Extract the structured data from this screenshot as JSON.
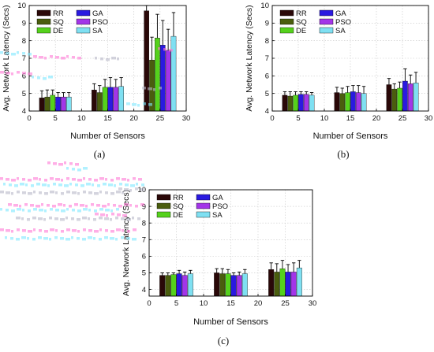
{
  "figure": {
    "panel_labels": [
      "(a)",
      "(b)",
      "(c)"
    ]
  },
  "colors": {
    "RR": "#2a0808",
    "SQ": "#4a5d0e",
    "DE": "#55d11c",
    "GA": "#2a1ae0",
    "PSO": "#a335e8",
    "SA": "#7fe0f2",
    "artifact_pink": "#ff79d6",
    "artifact_cyan": "#7ee9ff",
    "artifact_gray": "#b9b9c9"
  },
  "chart_data": [
    {
      "type": "bar",
      "panel": "(a)",
      "ylabel": "Avg. Network Latency (Secs)",
      "xlabel": "Number of Sensors",
      "xlim": [
        0,
        30
      ],
      "xticks": [
        0,
        5,
        10,
        15,
        20,
        25,
        30
      ],
      "ylim": [
        4,
        10
      ],
      "yticks": [
        4,
        5,
        6,
        7,
        8,
        9,
        10
      ],
      "legend": {
        "placement": "top-left",
        "entries": [
          "RR",
          "GA",
          "SQ",
          "PSO",
          "DE",
          "SA"
        ]
      },
      "grid": true,
      "categories": [
        "5",
        "15",
        "25"
      ],
      "series": [
        {
          "name": "RR",
          "values": [
            4.75,
            5.2,
            9.7
          ],
          "errors": [
            0.4,
            0.35,
            0.3
          ]
        },
        {
          "name": "SQ",
          "values": [
            4.8,
            5.05,
            6.9
          ],
          "errors": [
            0.4,
            0.4,
            1.3
          ]
        },
        {
          "name": "DE",
          "values": [
            4.9,
            5.35,
            8.15
          ],
          "errors": [
            0.3,
            0.45,
            1.35
          ]
        },
        {
          "name": "GA",
          "values": [
            4.8,
            5.35,
            7.75
          ],
          "errors": [
            0.25,
            0.55,
            1.4
          ]
        },
        {
          "name": "PSO",
          "values": [
            4.8,
            5.35,
            7.45
          ],
          "errors": [
            0.25,
            0.45,
            1.2
          ]
        },
        {
          "name": "SA",
          "values": [
            4.8,
            5.4,
            8.25
          ],
          "errors": [
            0.25,
            0.5,
            1.35
          ]
        }
      ]
    },
    {
      "type": "bar",
      "panel": "(b)",
      "ylabel": "Avg. Network Latency (Secs)",
      "xlabel": "Number of Sensors",
      "xlim": [
        0,
        30
      ],
      "xticks": [
        0,
        5,
        10,
        15,
        20,
        25,
        30
      ],
      "ylim": [
        4,
        10
      ],
      "yticks": [
        4,
        5,
        6,
        7,
        8,
        9,
        10
      ],
      "legend": {
        "placement": "top-left",
        "entries": [
          "RR",
          "GA",
          "SQ",
          "PSO",
          "DE",
          "SA"
        ]
      },
      "grid": true,
      "categories": [
        "5",
        "15",
        "25"
      ],
      "series": [
        {
          "name": "RR",
          "values": [
            4.9,
            5.05,
            5.5
          ],
          "errors": [
            0.2,
            0.3,
            0.35
          ]
        },
        {
          "name": "SQ",
          "values": [
            4.85,
            5.0,
            5.25
          ],
          "errors": [
            0.25,
            0.3,
            0.3
          ]
        },
        {
          "name": "DE",
          "values": [
            4.9,
            5.05,
            5.3
          ],
          "errors": [
            0.2,
            0.35,
            0.35
          ]
        },
        {
          "name": "GA",
          "values": [
            4.95,
            5.1,
            5.7
          ],
          "errors": [
            0.15,
            0.35,
            0.7
          ]
        },
        {
          "name": "PSO",
          "values": [
            4.95,
            5.05,
            5.55
          ],
          "errors": [
            0.15,
            0.4,
            0.5
          ]
        },
        {
          "name": "SA",
          "values": [
            4.9,
            5.0,
            5.6
          ],
          "errors": [
            0.15,
            0.4,
            0.6
          ]
        }
      ]
    },
    {
      "type": "bar",
      "panel": "(c)",
      "ylabel": "Avg. Network Latency (Secs)",
      "xlabel": "Number of Sensors",
      "xlim": [
        0,
        30
      ],
      "xticks": [
        0,
        5,
        10,
        15,
        20,
        25,
        30
      ],
      "ylim": [
        3.6,
        10
      ],
      "yticks": [
        4,
        5,
        6,
        7,
        8,
        9,
        10
      ],
      "legend": {
        "placement": "top-left",
        "entries": [
          "RR",
          "GA",
          "SQ",
          "PSO",
          "DE",
          "SA"
        ]
      },
      "grid": true,
      "categories": [
        "5",
        "15",
        "25"
      ],
      "series": [
        {
          "name": "RR",
          "values": [
            4.85,
            5.0,
            5.2
          ],
          "errors": [
            0.15,
            0.25,
            0.4
          ]
        },
        {
          "name": "SQ",
          "values": [
            4.85,
            4.95,
            5.05
          ],
          "errors": [
            0.15,
            0.3,
            0.5
          ]
        },
        {
          "name": "DE",
          "values": [
            4.9,
            4.95,
            5.25
          ],
          "errors": [
            0.1,
            0.25,
            0.5
          ]
        },
        {
          "name": "GA",
          "values": [
            4.95,
            4.85,
            5.05
          ],
          "errors": [
            0.2,
            0.15,
            0.45
          ]
        },
        {
          "name": "PSO",
          "values": [
            4.85,
            4.85,
            5.05
          ],
          "errors": [
            0.2,
            0.2,
            0.55
          ]
        },
        {
          "name": "SA",
          "values": [
            4.95,
            4.95,
            5.3
          ],
          "errors": [
            0.2,
            0.25,
            0.45
          ]
        }
      ]
    }
  ]
}
